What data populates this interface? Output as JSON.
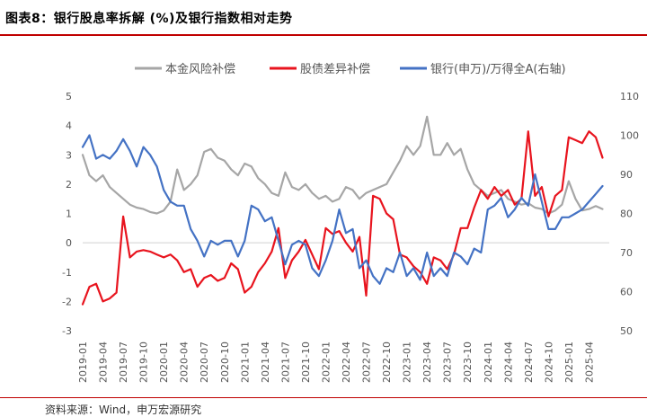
{
  "header": {
    "title": "图表8：银行股息率拆解 (%)及银行指数相对走势"
  },
  "footer": {
    "source": "资料来源：Wind，申万宏源研究"
  },
  "chart_data": {
    "type": "line",
    "legend": {
      "placement": "top",
      "entries": [
        "本金风险补偿",
        "股债差异补偿",
        "银行(申万)/万得全A(右轴)"
      ]
    },
    "colors": {
      "principal": "#a6a6a6",
      "spread": "#e8141e",
      "index": "#4472c4"
    },
    "y_left": {
      "ylim": [
        -3,
        5
      ],
      "ticks": [
        "-3",
        "-2",
        "-1",
        "0",
        "1",
        "2",
        "3",
        "4",
        "5"
      ]
    },
    "y_right": {
      "ylim": [
        50,
        110
      ],
      "ticks": [
        "50",
        "60",
        "70",
        "80",
        "90",
        "100",
        "110"
      ]
    },
    "x_range": [
      "2019-01",
      "2025-07"
    ],
    "x_ticks": [
      "2019-01",
      "2019-04",
      "2019-07",
      "2019-10",
      "2020-01",
      "2020-04",
      "2020-07",
      "2020-10",
      "2021-01",
      "2021-04",
      "2021-07",
      "2021-10",
      "2022-01",
      "2022-04",
      "2022-07",
      "2022-10",
      "2023-01",
      "2023-04",
      "2023-07",
      "2023-10",
      "2024-01",
      "2024-04",
      "2024-07",
      "2024-10",
      "2025-01",
      "2025-04"
    ],
    "series": [
      {
        "name": "本金风险补偿",
        "axis": "left",
        "points": [
          [
            "2019-01",
            3.0
          ],
          [
            "2019-02",
            2.3
          ],
          [
            "2019-03",
            2.1
          ],
          [
            "2019-04",
            2.3
          ],
          [
            "2019-05",
            1.9
          ],
          [
            "2019-06",
            1.7
          ],
          [
            "2019-07",
            1.5
          ],
          [
            "2019-08",
            1.3
          ],
          [
            "2019-09",
            1.2
          ],
          [
            "2019-10",
            1.15
          ],
          [
            "2019-11",
            1.05
          ],
          [
            "2019-12",
            1.0
          ],
          [
            "2020-01",
            1.1
          ],
          [
            "2020-02",
            1.4
          ],
          [
            "2020-03",
            2.5
          ],
          [
            "2020-04",
            1.8
          ],
          [
            "2020-05",
            2.0
          ],
          [
            "2020-06",
            2.3
          ],
          [
            "2020-07",
            3.1
          ],
          [
            "2020-08",
            3.2
          ],
          [
            "2020-09",
            2.9
          ],
          [
            "2020-10",
            2.8
          ],
          [
            "2020-11",
            2.5
          ],
          [
            "2020-12",
            2.3
          ],
          [
            "2021-01",
            2.7
          ],
          [
            "2021-02",
            2.6
          ],
          [
            "2021-03",
            2.2
          ],
          [
            "2021-04",
            2.0
          ],
          [
            "2021-05",
            1.7
          ],
          [
            "2021-06",
            1.6
          ],
          [
            "2021-07",
            2.4
          ],
          [
            "2021-08",
            1.9
          ],
          [
            "2021-09",
            1.8
          ],
          [
            "2021-10",
            2.0
          ],
          [
            "2021-11",
            1.7
          ],
          [
            "2021-12",
            1.5
          ],
          [
            "2022-01",
            1.6
          ],
          [
            "2022-02",
            1.4
          ],
          [
            "2022-03",
            1.5
          ],
          [
            "2022-04",
            1.9
          ],
          [
            "2022-05",
            1.8
          ],
          [
            "2022-06",
            1.5
          ],
          [
            "2022-07",
            1.7
          ],
          [
            "2022-08",
            1.8
          ],
          [
            "2022-09",
            1.9
          ],
          [
            "2022-10",
            2.0
          ],
          [
            "2022-11",
            2.4
          ],
          [
            "2022-12",
            2.8
          ],
          [
            "2023-01",
            3.3
          ],
          [
            "2023-02",
            3.0
          ],
          [
            "2023-03",
            3.3
          ],
          [
            "2023-04",
            4.3
          ],
          [
            "2023-05",
            3.0
          ],
          [
            "2023-06",
            3.0
          ],
          [
            "2023-07",
            3.4
          ],
          [
            "2023-08",
            3.0
          ],
          [
            "2023-09",
            3.2
          ],
          [
            "2023-10",
            2.5
          ],
          [
            "2023-11",
            2.0
          ],
          [
            "2023-12",
            1.8
          ],
          [
            "2024-01",
            1.6
          ],
          [
            "2024-02",
            1.7
          ],
          [
            "2024-03",
            1.8
          ],
          [
            "2024-04",
            1.5
          ],
          [
            "2024-05",
            1.4
          ],
          [
            "2024-06",
            1.3
          ],
          [
            "2024-07",
            1.35
          ],
          [
            "2024-08",
            1.2
          ],
          [
            "2024-09",
            1.15
          ],
          [
            "2024-10",
            1.0
          ],
          [
            "2024-11",
            1.1
          ],
          [
            "2024-12",
            1.3
          ],
          [
            "2025-01",
            2.1
          ],
          [
            "2025-02",
            1.5
          ],
          [
            "2025-03",
            1.1
          ],
          [
            "2025-04",
            1.15
          ],
          [
            "2025-05",
            1.25
          ],
          [
            "2025-06",
            1.15
          ]
        ]
      },
      {
        "name": "股债差异补偿",
        "axis": "left",
        "points": [
          [
            "2019-01",
            -2.1
          ],
          [
            "2019-02",
            -1.5
          ],
          [
            "2019-03",
            -1.4
          ],
          [
            "2019-04",
            -2.0
          ],
          [
            "2019-05",
            -1.9
          ],
          [
            "2019-06",
            -1.7
          ],
          [
            "2019-07",
            0.9
          ],
          [
            "2019-08",
            -0.5
          ],
          [
            "2019-09",
            -0.3
          ],
          [
            "2019-10",
            -0.25
          ],
          [
            "2019-11",
            -0.3
          ],
          [
            "2019-12",
            -0.4
          ],
          [
            "2020-01",
            -0.5
          ],
          [
            "2020-02",
            -0.4
          ],
          [
            "2020-03",
            -0.6
          ],
          [
            "2020-04",
            -1.0
          ],
          [
            "2020-05",
            -0.9
          ],
          [
            "2020-06",
            -1.5
          ],
          [
            "2020-07",
            -1.2
          ],
          [
            "2020-08",
            -1.1
          ],
          [
            "2020-09",
            -1.3
          ],
          [
            "2020-10",
            -1.2
          ],
          [
            "2020-11",
            -0.7
          ],
          [
            "2020-12",
            -0.9
          ],
          [
            "2021-01",
            -1.7
          ],
          [
            "2021-02",
            -1.5
          ],
          [
            "2021-03",
            -1.0
          ],
          [
            "2021-04",
            -0.7
          ],
          [
            "2021-05",
            -0.3
          ],
          [
            "2021-06",
            0.5
          ],
          [
            "2021-07",
            -1.2
          ],
          [
            "2021-08",
            -0.6
          ],
          [
            "2021-09",
            -0.3
          ],
          [
            "2021-10",
            0.1
          ],
          [
            "2021-11",
            -0.4
          ],
          [
            "2021-12",
            -0.9
          ],
          [
            "2022-01",
            0.5
          ],
          [
            "2022-02",
            0.3
          ],
          [
            "2022-03",
            0.4
          ],
          [
            "2022-04",
            0.0
          ],
          [
            "2022-05",
            -0.3
          ],
          [
            "2022-06",
            0.2
          ],
          [
            "2022-07",
            -1.8
          ],
          [
            "2022-08",
            1.6
          ],
          [
            "2022-09",
            1.5
          ],
          [
            "2022-10",
            1.0
          ],
          [
            "2022-11",
            0.8
          ],
          [
            "2022-12",
            -0.4
          ],
          [
            "2023-01",
            -0.5
          ],
          [
            "2023-02",
            -0.8
          ],
          [
            "2023-03",
            -1.0
          ],
          [
            "2023-04",
            -1.4
          ],
          [
            "2023-05",
            -0.5
          ],
          [
            "2023-06",
            -0.6
          ],
          [
            "2023-07",
            -0.9
          ],
          [
            "2023-08",
            -0.4
          ],
          [
            "2023-09",
            0.5
          ],
          [
            "2023-10",
            0.5
          ],
          [
            "2023-11",
            1.2
          ],
          [
            "2023-12",
            1.8
          ],
          [
            "2024-01",
            1.5
          ],
          [
            "2024-02",
            1.9
          ],
          [
            "2024-03",
            1.6
          ],
          [
            "2024-04",
            1.8
          ],
          [
            "2024-05",
            1.3
          ],
          [
            "2024-06",
            1.5
          ],
          [
            "2024-07",
            3.8
          ],
          [
            "2024-08",
            1.6
          ],
          [
            "2024-09",
            1.9
          ],
          [
            "2024-10",
            0.9
          ],
          [
            "2024-11",
            1.6
          ],
          [
            "2024-12",
            1.8
          ],
          [
            "2025-01",
            3.6
          ],
          [
            "2025-02",
            3.5
          ],
          [
            "2025-03",
            3.4
          ],
          [
            "2025-04",
            3.8
          ],
          [
            "2025-05",
            3.6
          ],
          [
            "2025-06",
            2.9
          ]
        ]
      },
      {
        "name": "银行(申万)/万得全A(右轴)",
        "axis": "right",
        "points": [
          [
            "2019-01",
            97
          ],
          [
            "2019-02",
            100
          ],
          [
            "2019-03",
            94
          ],
          [
            "2019-04",
            95
          ],
          [
            "2019-05",
            94
          ],
          [
            "2019-06",
            96
          ],
          [
            "2019-07",
            99
          ],
          [
            "2019-08",
            96
          ],
          [
            "2019-09",
            92
          ],
          [
            "2019-10",
            97
          ],
          [
            "2019-11",
            95
          ],
          [
            "2019-12",
            92
          ],
          [
            "2020-01",
            86
          ],
          [
            "2020-02",
            83
          ],
          [
            "2020-03",
            82
          ],
          [
            "2020-04",
            82
          ],
          [
            "2020-05",
            76
          ],
          [
            "2020-06",
            73
          ],
          [
            "2020-07",
            69
          ],
          [
            "2020-08",
            73
          ],
          [
            "2020-09",
            72
          ],
          [
            "2020-10",
            73
          ],
          [
            "2020-11",
            73
          ],
          [
            "2020-12",
            69
          ],
          [
            "2021-01",
            73
          ],
          [
            "2021-02",
            82
          ],
          [
            "2021-03",
            81
          ],
          [
            "2021-04",
            78
          ],
          [
            "2021-05",
            79
          ],
          [
            "2021-06",
            73
          ],
          [
            "2021-07",
            67
          ],
          [
            "2021-08",
            72
          ],
          [
            "2021-09",
            73
          ],
          [
            "2021-10",
            72
          ],
          [
            "2021-11",
            66
          ],
          [
            "2021-12",
            64
          ],
          [
            "2022-01",
            68
          ],
          [
            "2022-02",
            73
          ],
          [
            "2022-03",
            81
          ],
          [
            "2022-04",
            75
          ],
          [
            "2022-05",
            76
          ],
          [
            "2022-06",
            66
          ],
          [
            "2022-07",
            68
          ],
          [
            "2022-08",
            64
          ],
          [
            "2022-09",
            62
          ],
          [
            "2022-10",
            66
          ],
          [
            "2022-11",
            65
          ],
          [
            "2022-12",
            70
          ],
          [
            "2023-01",
            64
          ],
          [
            "2023-02",
            66
          ],
          [
            "2023-03",
            63
          ],
          [
            "2023-04",
            70
          ],
          [
            "2023-05",
            64
          ],
          [
            "2023-06",
            66
          ],
          [
            "2023-07",
            64
          ],
          [
            "2023-08",
            70
          ],
          [
            "2023-09",
            69
          ],
          [
            "2023-10",
            67
          ],
          [
            "2023-11",
            71
          ],
          [
            "2023-12",
            70
          ],
          [
            "2024-01",
            81
          ],
          [
            "2024-02",
            82
          ],
          [
            "2024-03",
            84
          ],
          [
            "2024-04",
            79
          ],
          [
            "2024-05",
            81
          ],
          [
            "2024-06",
            84
          ],
          [
            "2024-07",
            82
          ],
          [
            "2024-08",
            90
          ],
          [
            "2024-09",
            83
          ],
          [
            "2024-10",
            76
          ],
          [
            "2024-11",
            76
          ],
          [
            "2024-12",
            79
          ],
          [
            "2025-01",
            79
          ],
          [
            "2025-02",
            80
          ],
          [
            "2025-03",
            81
          ],
          [
            "2025-04",
            83
          ],
          [
            "2025-05",
            85
          ],
          [
            "2025-06",
            87
          ]
        ]
      }
    ]
  }
}
